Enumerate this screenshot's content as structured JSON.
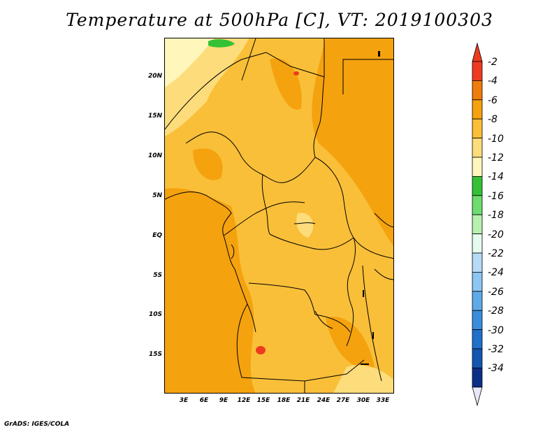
{
  "title": "Temperature at 500hPa [C], VT: 2019100303",
  "footer": "GrADS: IGES/COLA",
  "lat_labels": [
    "20N",
    "15N",
    "10N",
    "5N",
    "EQ",
    "5S",
    "10S",
    "15S"
  ],
  "lon_labels": [
    "3E",
    "6E",
    "9E",
    "12E",
    "15E",
    "18E",
    "21E",
    "24E",
    "27E",
    "30E",
    "33E"
  ],
  "colorbar": {
    "labels": [
      "-2",
      "-4",
      "-6",
      "-8",
      "-10",
      "-12",
      "-14",
      "-16",
      "-18",
      "-20",
      "-22",
      "-24",
      "-26",
      "-28",
      "-30",
      "-32",
      "-34"
    ],
    "colors": [
      "#ee3b1f",
      "#f07c0c",
      "#f5a20f",
      "#f9bf38",
      "#fddc7b",
      "#fff6bb",
      "#35c135",
      "#6fdc6f",
      "#b8f0b0",
      "#e6fbf0",
      "#b6dbf7",
      "#8ec6f3",
      "#5eaae8",
      "#3b8ddc",
      "#2070cc",
      "#1456b0",
      "#0b2f86"
    ],
    "under_color": "#0b1a6e",
    "over_color": "#e8e8f8"
  },
  "field_colors": {
    "dominant": "#f9bf38",
    "warm": "#f5a20f",
    "cool": "#fddc7b",
    "cooler": "#fff6bb",
    "hot": "#ee3b1f",
    "green": "#35c135"
  }
}
